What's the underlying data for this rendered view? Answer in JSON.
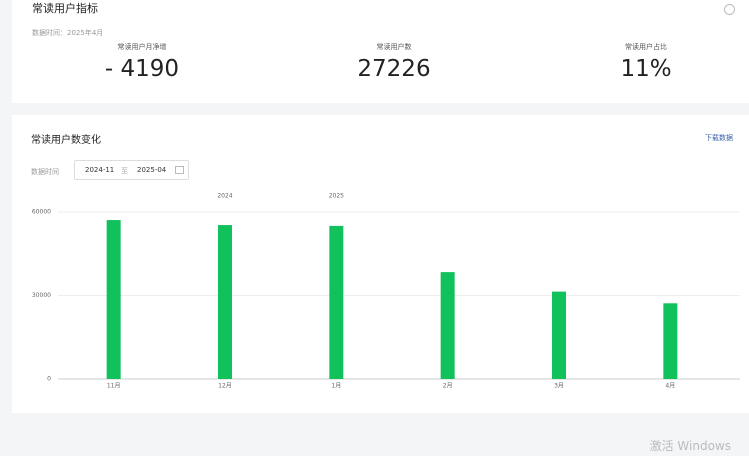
{
  "header": {
    "title": "常读用户指标",
    "data_time": "数据时间：2025年4月"
  },
  "metrics": [
    {
      "label": "常读用户月净增",
      "value": "- 4190"
    },
    {
      "label": "常读用户数",
      "value": "27226"
    },
    {
      "label": "常读用户占比",
      "value": "11%"
    }
  ],
  "chart_card": {
    "title": "常读用户数变化",
    "download": "下载数据",
    "filter_label": "数据时间",
    "start": "2024-11",
    "separator": "至",
    "end": "2025-04"
  },
  "chart_data": {
    "type": "bar",
    "categories": [
      "11月",
      "12月",
      "1月",
      "2月",
      "3月",
      "4月"
    ],
    "years": [
      null,
      "2024",
      "2025",
      null,
      null,
      null
    ],
    "values": [
      57100,
      55300,
      55000,
      38400,
      31400,
      27200
    ],
    "color": "#10c15c",
    "ylim": [
      0,
      60000
    ],
    "yticks": [
      0,
      30000,
      60000
    ],
    "grid": true
  },
  "watermark": "激活 Windows"
}
